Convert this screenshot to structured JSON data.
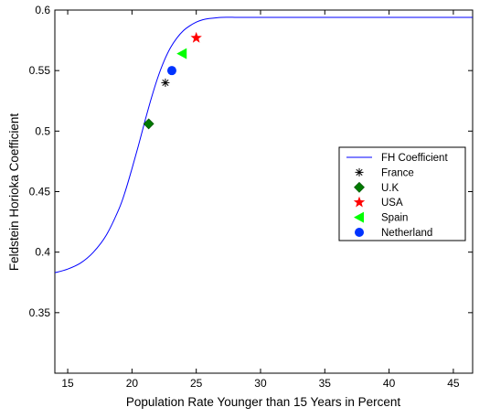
{
  "chart_data": {
    "type": "line",
    "xlabel": "Population Rate Younger than 15 Years in Percent",
    "ylabel": "Feldstein Horioka Coefficient",
    "xlim": [
      14,
      46.5
    ],
    "ylim": [
      0.3,
      0.6
    ],
    "xticks": [
      "15",
      "20",
      "25",
      "30",
      "35",
      "40",
      "45"
    ],
    "yticks": [
      "0.35",
      "0.4",
      "0.45",
      "0.5",
      "0.55",
      "0.6"
    ],
    "grid": false,
    "legend_position": "center-right",
    "curve": {
      "name": "FH Coefficient",
      "color": "#0000ff",
      "x": [
        14,
        15,
        16,
        17,
        18,
        19,
        19.5,
        20,
        20.5,
        21,
        21.5,
        22,
        22.5,
        23,
        23.5,
        24,
        24.5,
        25,
        25.5,
        26,
        27,
        28,
        29,
        30,
        32,
        35,
        40,
        46.5
      ],
      "y": [
        0.383,
        0.386,
        0.391,
        0.4,
        0.414,
        0.436,
        0.451,
        0.469,
        0.488,
        0.508,
        0.527,
        0.544,
        0.558,
        0.569,
        0.577,
        0.583,
        0.587,
        0.59,
        0.592,
        0.593,
        0.594,
        0.594,
        0.594,
        0.594,
        0.594,
        0.594,
        0.594,
        0.594
      ]
    },
    "points": [
      {
        "name": "France",
        "x": 22.6,
        "y": 0.54,
        "marker": "asterisk",
        "color": "#000000"
      },
      {
        "name": "U.K",
        "x": 21.3,
        "y": 0.506,
        "marker": "diamond",
        "color": "#007a00"
      },
      {
        "name": "USA",
        "x": 25.0,
        "y": 0.577,
        "marker": "star",
        "color": "#ff0000"
      },
      {
        "name": "Spain",
        "x": 23.9,
        "y": 0.564,
        "marker": "triangle-left",
        "color": "#00ff00"
      },
      {
        "name": "Netherland",
        "x": 23.1,
        "y": 0.55,
        "marker": "circle",
        "color": "#0033ff"
      }
    ]
  }
}
